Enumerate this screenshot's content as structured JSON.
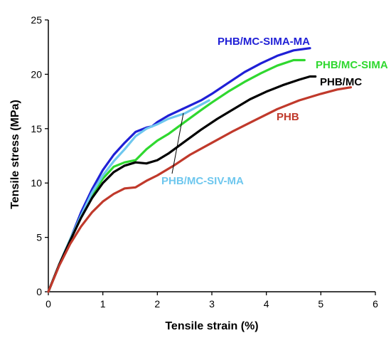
{
  "chart_data": {
    "type": "line",
    "xlabel": "Tensile strain (%)",
    "ylabel": "Tensile stress (MPa)",
    "xlim": [
      0,
      6
    ],
    "ylim": [
      0,
      25
    ],
    "x_ticks": [
      "0",
      "1",
      "2",
      "3",
      "4",
      "5",
      "6"
    ],
    "y_ticks": [
      "0",
      "5",
      "10",
      "15",
      "20",
      "25"
    ],
    "grid": false,
    "series": [
      {
        "name": "PHB/MC-SIMA-MA",
        "color": "#1f1fd6",
        "points": [
          [
            0,
            0
          ],
          [
            0.2,
            2.5
          ],
          [
            0.4,
            4.8
          ],
          [
            0.6,
            7.3
          ],
          [
            0.8,
            9.4
          ],
          [
            1.0,
            11.2
          ],
          [
            1.2,
            12.6
          ],
          [
            1.4,
            13.7
          ],
          [
            1.6,
            14.7
          ],
          [
            1.8,
            15.1
          ],
          [
            1.9,
            15.2
          ],
          [
            2.0,
            15.6
          ],
          [
            2.2,
            16.2
          ],
          [
            2.5,
            16.9
          ],
          [
            2.8,
            17.6
          ],
          [
            3.0,
            18.2
          ],
          [
            3.3,
            19.2
          ],
          [
            3.6,
            20.2
          ],
          [
            3.9,
            21.0
          ],
          [
            4.2,
            21.7
          ],
          [
            4.5,
            22.2
          ],
          [
            4.8,
            22.4
          ]
        ]
      },
      {
        "name": "PHB/MC-SIMA",
        "color": "#2fd82f",
        "points": [
          [
            0,
            0
          ],
          [
            0.2,
            2.5
          ],
          [
            0.4,
            4.8
          ],
          [
            0.6,
            7.0
          ],
          [
            0.8,
            8.9
          ],
          [
            1.0,
            10.4
          ],
          [
            1.2,
            11.5
          ],
          [
            1.4,
            11.9
          ],
          [
            1.6,
            12.1
          ],
          [
            1.8,
            13.1
          ],
          [
            2.0,
            13.9
          ],
          [
            2.2,
            14.5
          ],
          [
            2.5,
            15.6
          ],
          [
            2.8,
            16.7
          ],
          [
            3.0,
            17.4
          ],
          [
            3.3,
            18.4
          ],
          [
            3.6,
            19.3
          ],
          [
            3.9,
            20.1
          ],
          [
            4.2,
            20.8
          ],
          [
            4.5,
            21.3
          ],
          [
            4.7,
            21.3
          ]
        ]
      },
      {
        "name": "PHB/MC-SIV-MA",
        "color": "#6ec7ee",
        "points": [
          [
            0,
            0
          ],
          [
            0.2,
            2.5
          ],
          [
            0.4,
            4.8
          ],
          [
            0.6,
            7.0
          ],
          [
            0.8,
            9.1
          ],
          [
            1.0,
            10.7
          ],
          [
            1.2,
            12.0
          ],
          [
            1.4,
            13.1
          ],
          [
            1.6,
            14.3
          ],
          [
            1.8,
            15.0
          ],
          [
            2.0,
            15.4
          ],
          [
            2.2,
            15.9
          ],
          [
            2.5,
            16.4
          ],
          [
            2.8,
            17.2
          ],
          [
            2.95,
            17.6
          ]
        ]
      },
      {
        "name": "PHB/MC",
        "color": "#000000",
        "points": [
          [
            0,
            0
          ],
          [
            0.2,
            2.5
          ],
          [
            0.4,
            4.7
          ],
          [
            0.6,
            6.8
          ],
          [
            0.8,
            8.6
          ],
          [
            1.0,
            10.0
          ],
          [
            1.2,
            11.0
          ],
          [
            1.4,
            11.6
          ],
          [
            1.6,
            11.9
          ],
          [
            1.8,
            11.8
          ],
          [
            2.0,
            12.1
          ],
          [
            2.2,
            12.7
          ],
          [
            2.5,
            13.8
          ],
          [
            2.8,
            14.9
          ],
          [
            3.1,
            15.9
          ],
          [
            3.4,
            16.8
          ],
          [
            3.7,
            17.7
          ],
          [
            4.0,
            18.4
          ],
          [
            4.3,
            19.0
          ],
          [
            4.6,
            19.5
          ],
          [
            4.8,
            19.8
          ],
          [
            4.9,
            19.8
          ]
        ]
      },
      {
        "name": "PHB",
        "color": "#c0392b",
        "points": [
          [
            0,
            0
          ],
          [
            0.2,
            2.4
          ],
          [
            0.4,
            4.4
          ],
          [
            0.6,
            6.0
          ],
          [
            0.8,
            7.3
          ],
          [
            1.0,
            8.3
          ],
          [
            1.2,
            9.0
          ],
          [
            1.4,
            9.5
          ],
          [
            1.6,
            9.6
          ],
          [
            1.8,
            10.2
          ],
          [
            2.0,
            10.7
          ],
          [
            2.3,
            11.6
          ],
          [
            2.6,
            12.6
          ],
          [
            3.0,
            13.7
          ],
          [
            3.4,
            14.8
          ],
          [
            3.8,
            15.8
          ],
          [
            4.2,
            16.8
          ],
          [
            4.6,
            17.6
          ],
          [
            5.0,
            18.2
          ],
          [
            5.3,
            18.6
          ],
          [
            5.55,
            18.8
          ]
        ]
      }
    ],
    "series_labels": [
      {
        "text": "PHB/MC-SIMA-MA",
        "color": "#1f1fd6"
      },
      {
        "text": "PHB/MC-SIMA",
        "color": "#2fd82f"
      },
      {
        "text": "PHB/MC",
        "color": "#000000"
      },
      {
        "text": "PHB",
        "color": "#c0392b"
      },
      {
        "text": "PHB/MC-SIV-MA",
        "color": "#6ec7ee"
      }
    ]
  }
}
